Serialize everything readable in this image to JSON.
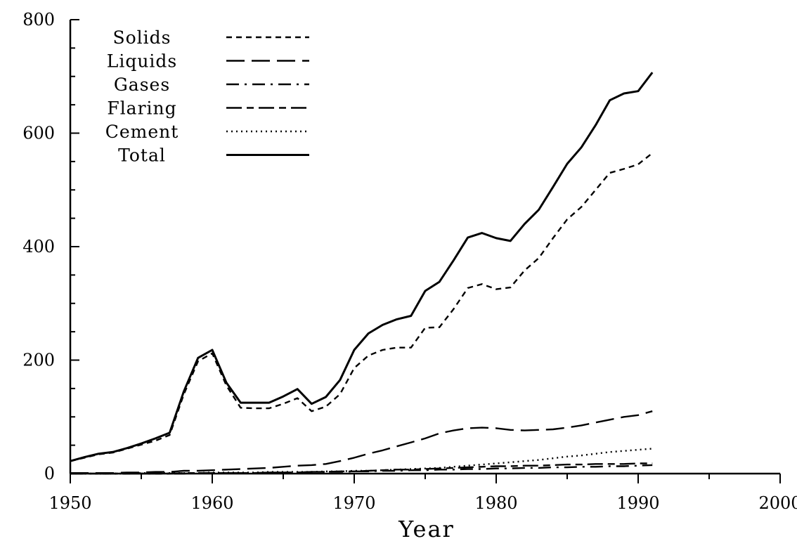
{
  "chart_data": {
    "type": "line",
    "title": "",
    "xlabel": "Year",
    "ylabel": "",
    "xlim": [
      1950,
      2000
    ],
    "ylim": [
      0,
      800
    ],
    "x_ticks": [
      1950,
      1960,
      1970,
      1980,
      1990,
      2000
    ],
    "x_tick_labels": [
      "1950",
      "1960",
      "1970",
      "1980",
      "1990",
      "2000"
    ],
    "y_ticks": [
      0,
      200,
      400,
      600,
      800
    ],
    "y_tick_labels": [
      "0",
      "200",
      "400",
      "600",
      "800"
    ],
    "grid": false,
    "legend_position": "top-left",
    "x": [
      1950,
      1951,
      1952,
      1953,
      1954,
      1955,
      1956,
      1957,
      1958,
      1959,
      1960,
      1961,
      1962,
      1963,
      1964,
      1965,
      1966,
      1967,
      1968,
      1969,
      1970,
      1971,
      1972,
      1973,
      1974,
      1975,
      1976,
      1977,
      1978,
      1979,
      1980,
      1981,
      1982,
      1983,
      1984,
      1985,
      1986,
      1987,
      1988,
      1989,
      1990,
      1991
    ],
    "series": [
      {
        "name": "Solids",
        "style": "short-dash",
        "values": [
          22,
          28,
          34,
          37,
          44,
          51,
          58,
          68,
          140,
          198,
          212,
          155,
          116,
          115,
          115,
          123,
          133,
          110,
          118,
          140,
          186,
          208,
          218,
          222,
          222,
          257,
          258,
          290,
          327,
          334,
          325,
          328,
          358,
          380,
          415,
          448,
          470,
          500,
          530,
          537,
          545,
          565
        ]
      },
      {
        "name": "Liquids",
        "style": "long-dash",
        "values": [
          1,
          1,
          1,
          1,
          2,
          2,
          3,
          3,
          5,
          5,
          6,
          7,
          8,
          9,
          10,
          12,
          14,
          15,
          17,
          22,
          28,
          35,
          41,
          48,
          55,
          62,
          71,
          76,
          80,
          81,
          80,
          77,
          76,
          77,
          78,
          81,
          85,
          90,
          95,
          100,
          103,
          110
        ]
      },
      {
        "name": "Gases",
        "style": "dash-dot",
        "values": [
          0,
          0,
          0,
          0,
          0,
          0,
          0,
          0,
          0,
          1,
          1,
          1,
          1,
          1,
          2,
          2,
          2,
          3,
          3,
          3,
          4,
          4,
          5,
          5,
          6,
          6,
          7,
          7,
          8,
          8,
          9,
          9,
          10,
          10,
          11,
          11,
          12,
          12,
          13,
          13,
          14,
          15
        ]
      },
      {
        "name": "Flaring",
        "style": "long-short-dash",
        "values": [
          0,
          0,
          0,
          0,
          0,
          0,
          0,
          0,
          1,
          1,
          1,
          1,
          1,
          1,
          2,
          2,
          2,
          3,
          3,
          4,
          4,
          5,
          6,
          7,
          7,
          8,
          9,
          10,
          11,
          12,
          13,
          13,
          14,
          14,
          15,
          16,
          16,
          17,
          17,
          17,
          18,
          18
        ]
      },
      {
        "name": "Cement",
        "style": "dotted",
        "values": [
          0,
          0,
          0,
          0,
          0,
          1,
          1,
          1,
          1,
          1,
          2,
          2,
          2,
          2,
          3,
          3,
          3,
          3,
          4,
          4,
          5,
          5,
          6,
          7,
          8,
          9,
          10,
          12,
          14,
          16,
          18,
          20,
          22,
          24,
          27,
          30,
          32,
          35,
          38,
          40,
          42,
          44
        ]
      },
      {
        "name": "Total",
        "style": "solid",
        "values": [
          22,
          29,
          35,
          38,
          45,
          53,
          62,
          72,
          145,
          204,
          218,
          160,
          125,
          125,
          125,
          136,
          149,
          123,
          135,
          165,
          218,
          247,
          262,
          272,
          278,
          322,
          338,
          376,
          416,
          424,
          415,
          410,
          440,
          465,
          505,
          546,
          575,
          614,
          658,
          670,
          674,
          707
        ]
      }
    ]
  }
}
